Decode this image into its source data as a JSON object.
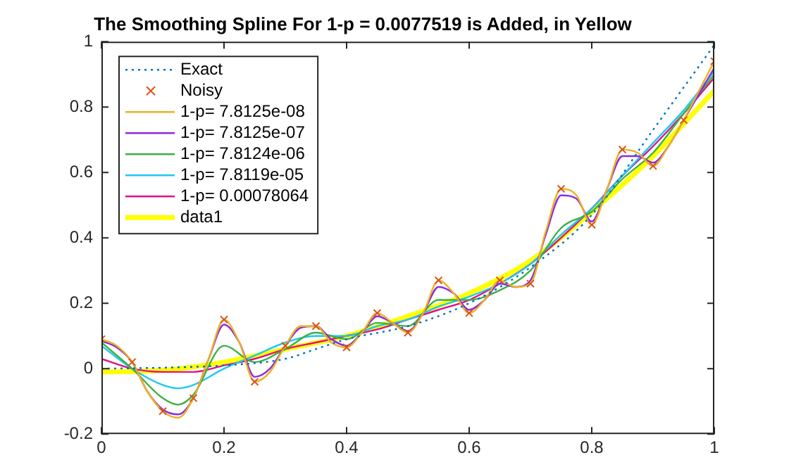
{
  "chart_data": {
    "type": "line",
    "title": "The Smoothing Spline For 1-p = 0.0077519 is Added, in Yellow",
    "xlim": [
      0,
      1
    ],
    "xticks": [
      0,
      0.2,
      0.4,
      0.6,
      0.8,
      1
    ],
    "ylim": [
      -0.2,
      1
    ],
    "yticks": [
      -0.2,
      0,
      0.2,
      0.4,
      0.6,
      0.8,
      1
    ],
    "grid": false,
    "legend": "top left",
    "series": [
      {
        "name": "Exact",
        "color": "#0072bd",
        "line_style": "dotted",
        "marker": "none",
        "x": [
          0,
          0.1,
          0.2,
          0.3,
          0.35,
          0.4,
          0.5,
          0.6,
          0.7,
          0.8,
          0.9,
          0.95,
          1
        ],
        "values": [
          0,
          0.003,
          0.01,
          0.03,
          0.06,
          0.09,
          0.13,
          0.2,
          0.31,
          0.47,
          0.73,
          0.86,
          0.99
        ]
      },
      {
        "name": "Noisy",
        "type": "scatter",
        "color": "#d95319",
        "marker": "cross",
        "x": [
          0,
          0.05,
          0.1,
          0.15,
          0.2,
          0.25,
          0.3,
          0.35,
          0.4,
          0.45,
          0.5,
          0.55,
          0.6,
          0.65,
          0.7,
          0.75,
          0.8,
          0.85,
          0.9,
          0.95,
          1
        ],
        "values": [
          0.09,
          0.02,
          -0.13,
          -0.09,
          0.15,
          -0.04,
          0.07,
          0.13,
          0.065,
          0.17,
          0.11,
          0.27,
          0.17,
          0.27,
          0.26,
          0.55,
          0.44,
          0.67,
          0.62,
          0.76,
          0.94
        ]
      },
      {
        "name": "1-p= 7.8125e-08",
        "color": "#edb120",
        "line_style": "solid",
        "marker": "none",
        "x": [
          0,
          0.025,
          0.05,
          0.075,
          0.1,
          0.125,
          0.15,
          0.175,
          0.2,
          0.225,
          0.25,
          0.275,
          0.3,
          0.325,
          0.35,
          0.375,
          0.4,
          0.425,
          0.45,
          0.475,
          0.5,
          0.525,
          0.55,
          0.575,
          0.6,
          0.625,
          0.65,
          0.675,
          0.7,
          0.725,
          0.75,
          0.775,
          0.8,
          0.825,
          0.85,
          0.875,
          0.9,
          0.925,
          0.95,
          0.975,
          1
        ],
        "values": [
          0.09,
          0.07,
          0.02,
          -0.07,
          -0.13,
          -0.15,
          -0.09,
          0.03,
          0.15,
          0.08,
          -0.04,
          -0.01,
          0.07,
          0.13,
          0.13,
          0.08,
          0.065,
          0.11,
          0.17,
          0.14,
          0.11,
          0.17,
          0.27,
          0.23,
          0.17,
          0.21,
          0.27,
          0.25,
          0.26,
          0.42,
          0.55,
          0.53,
          0.44,
          0.55,
          0.67,
          0.66,
          0.62,
          0.68,
          0.76,
          0.85,
          0.94
        ]
      },
      {
        "name": "1-p= 7.8125e-07",
        "color": "#8a2be2",
        "line_style": "solid",
        "marker": "none",
        "x": [
          0,
          0.025,
          0.05,
          0.075,
          0.1,
          0.125,
          0.15,
          0.175,
          0.2,
          0.225,
          0.25,
          0.275,
          0.3,
          0.325,
          0.35,
          0.375,
          0.4,
          0.425,
          0.45,
          0.475,
          0.5,
          0.525,
          0.55,
          0.575,
          0.6,
          0.625,
          0.65,
          0.675,
          0.7,
          0.725,
          0.75,
          0.775,
          0.8,
          0.825,
          0.85,
          0.875,
          0.9,
          0.925,
          0.95,
          0.975,
          1
        ],
        "values": [
          0.085,
          0.065,
          0.02,
          -0.07,
          -0.125,
          -0.14,
          -0.09,
          0.03,
          0.135,
          0.08,
          -0.025,
          0,
          0.07,
          0.125,
          0.13,
          0.09,
          0.07,
          0.11,
          0.16,
          0.14,
          0.115,
          0.17,
          0.25,
          0.23,
          0.18,
          0.21,
          0.26,
          0.25,
          0.27,
          0.41,
          0.53,
          0.52,
          0.45,
          0.55,
          0.65,
          0.65,
          0.63,
          0.68,
          0.76,
          0.84,
          0.92
        ]
      },
      {
        "name": "1-p= 7.8124e-06",
        "color": "#3cb043",
        "line_style": "solid",
        "marker": "none",
        "x": [
          0,
          0.05,
          0.1,
          0.125,
          0.15,
          0.2,
          0.25,
          0.3,
          0.35,
          0.4,
          0.45,
          0.5,
          0.55,
          0.6,
          0.65,
          0.7,
          0.75,
          0.8,
          0.85,
          0.9,
          0.95,
          1
        ],
        "values": [
          0.08,
          0,
          -0.09,
          -0.11,
          -0.08,
          0.07,
          0.02,
          0.06,
          0.11,
          0.09,
          0.14,
          0.13,
          0.21,
          0.21,
          0.24,
          0.3,
          0.43,
          0.48,
          0.58,
          0.66,
          0.78,
          0.9
        ]
      },
      {
        "name": "1-p= 7.8119e-05",
        "color": "#1ec8f0",
        "line_style": "solid",
        "marker": "none",
        "x": [
          0,
          0.05,
          0.1,
          0.125,
          0.15,
          0.2,
          0.25,
          0.3,
          0.35,
          0.4,
          0.45,
          0.5,
          0.55,
          0.6,
          0.65,
          0.7,
          0.75,
          0.8,
          0.85,
          0.9,
          0.95,
          1
        ],
        "values": [
          0.07,
          0,
          -0.05,
          -0.06,
          -0.05,
          0,
          0.04,
          0.08,
          0.1,
          0.1,
          0.13,
          0.15,
          0.19,
          0.22,
          0.26,
          0.32,
          0.41,
          0.49,
          0.59,
          0.69,
          0.79,
          0.91
        ]
      },
      {
        "name": "1-p= 0.00078064",
        "color": "#e0108a",
        "line_style": "solid",
        "marker": "none",
        "x": [
          0,
          0.05,
          0.1,
          0.15,
          0.2,
          0.25,
          0.3,
          0.35,
          0.4,
          0.45,
          0.5,
          0.55,
          0.6,
          0.65,
          0.7,
          0.75,
          0.8,
          0.85,
          0.9,
          0.95,
          1
        ],
        "values": [
          0.03,
          0,
          -0.01,
          -0.01,
          0.01,
          0.03,
          0.06,
          0.08,
          0.1,
          0.12,
          0.15,
          0.18,
          0.21,
          0.26,
          0.32,
          0.4,
          0.49,
          0.59,
          0.68,
          0.78,
          0.89
        ]
      },
      {
        "name": "data1",
        "color": "#ffff00",
        "line_style": "solid",
        "marker": "none",
        "x": [
          0,
          0.1,
          0.2,
          0.3,
          0.4,
          0.5,
          0.6,
          0.7,
          0.8,
          0.9,
          1
        ],
        "values": [
          -0.01,
          -0.005,
          0.02,
          0.06,
          0.1,
          0.16,
          0.23,
          0.33,
          0.48,
          0.65,
          0.85
        ]
      }
    ]
  }
}
